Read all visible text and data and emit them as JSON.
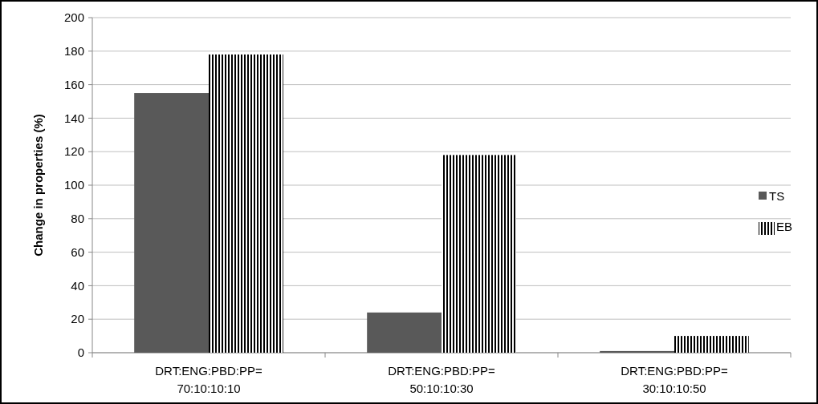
{
  "chart_data": {
    "type": "bar",
    "ylabel": "Change in properties (%)",
    "categories": [
      "DRT:ENG:PBD:PP= 70:10:10:10",
      "DRT:ENG:PBD:PP= 50:10:10:30",
      "DRT:ENG:PBD:PP= 30:10:10:50"
    ],
    "series": [
      {
        "name": "TS",
        "color": "#595959",
        "values": [
          155,
          24,
          1
        ]
      },
      {
        "name": "EB",
        "color": "#000000",
        "values": [
          178,
          118,
          10
        ]
      }
    ],
    "ylim": [
      0,
      200
    ],
    "yticks": [
      0,
      20,
      40,
      60,
      80,
      100,
      120,
      140,
      160,
      180,
      200
    ],
    "grid": "y",
    "legend": "right"
  }
}
